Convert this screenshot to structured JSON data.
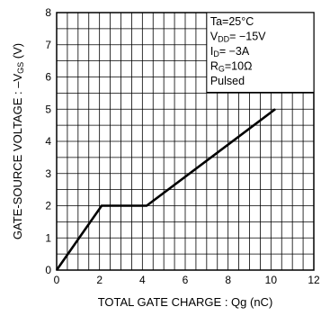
{
  "chart_data": {
    "type": "line",
    "xlabel": "TOTAL GATE CHARGE : Qg (nC)",
    "ylabel_main": "GATE-SOURCE VOLTAGE : –V",
    "ylabel_sub": "GS",
    "ylabel_unit": " (V)",
    "xlim": [
      0,
      12
    ],
    "ylim": [
      0,
      8
    ],
    "x_ticks": [
      "0",
      "2",
      "4",
      "6",
      "8",
      "10",
      "12"
    ],
    "y_ticks": [
      "0",
      "1",
      "2",
      "3",
      "4",
      "5",
      "6",
      "7",
      "8"
    ],
    "grid": true,
    "series": [
      {
        "x": [
          0,
          2.1,
          4.2,
          10.2
        ],
        "y": [
          0,
          2.0,
          2.0,
          5.0
        ]
      }
    ],
    "conditions": [
      {
        "main": "Ta=25°C",
        "sub": "",
        "rest": ""
      },
      {
        "main": "V",
        "sub": "DD",
        "rest": "= −15V"
      },
      {
        "main": "I",
        "sub": "D",
        "rest": "= −3A"
      },
      {
        "main": "R",
        "sub": "G",
        "rest": "=10Ω"
      },
      {
        "main": "Pulsed",
        "sub": "",
        "rest": ""
      }
    ]
  }
}
